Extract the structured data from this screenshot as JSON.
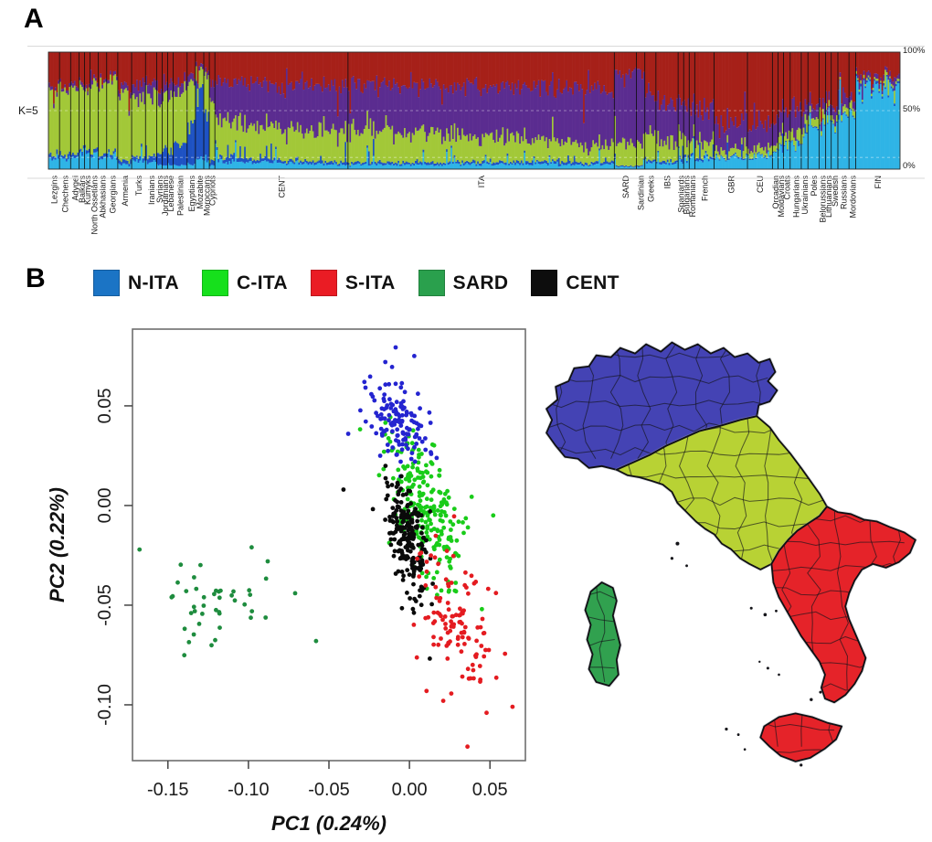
{
  "figure": {
    "panel_a_label": "A",
    "panel_b_label": "B",
    "background": "#ffffff"
  },
  "map": {
    "region_names": [
      "N-ITA",
      "C-ITA",
      "S-ITA",
      "SARD"
    ],
    "colors": {
      "north": "#4443b4",
      "central": "#b8d234",
      "south": "#e52329",
      "sardinia": "#31a14f",
      "border": "#101014"
    },
    "small_islands": [
      [
        152,
        230,
        2
      ],
      [
        146,
        246,
        1.6
      ],
      [
        162,
        254,
        1.4
      ],
      [
        232,
        300,
        1.5
      ],
      [
        247,
        307,
        1.8
      ],
      [
        259,
        303,
        1.4
      ],
      [
        205,
        431,
        1.6
      ],
      [
        218,
        437,
        1.4
      ],
      [
        297,
        399,
        1.7
      ],
      [
        307,
        391,
        1.5
      ],
      [
        286,
        470,
        1.6
      ],
      [
        225,
        453,
        1.3
      ],
      [
        250,
        365,
        1.5
      ],
      [
        262,
        372,
        1.3
      ],
      [
        241,
        358,
        1.2
      ]
    ]
  },
  "chart_data": [
    {
      "type": "bar",
      "name": "admixture-structure-plot",
      "stacked": true,
      "title": "K=5",
      "y_axis_labels": [
        "100%",
        "50%",
        "0%"
      ],
      "component_order": [
        "red",
        "purple",
        "green",
        "cyan",
        "blue"
      ],
      "component_colors": {
        "red": "#a62019",
        "purple": "#5b2c90",
        "green": "#a2c838",
        "cyan": "#2fb4e6",
        "blue": "#1e52c3"
      },
      "populations": [
        {
          "name": "Lezgins",
          "width": 2,
          "props": [
            0.33,
            0.03,
            0.52,
            0.09,
            0.03
          ]
        },
        {
          "name": "Chechens",
          "width": 2,
          "props": [
            0.3,
            0.03,
            0.55,
            0.09,
            0.03
          ]
        },
        {
          "name": "Adygei",
          "width": 1.5,
          "props": [
            0.28,
            0.04,
            0.54,
            0.11,
            0.03
          ]
        },
        {
          "name": "Balkars",
          "width": 1,
          "props": [
            0.26,
            0.03,
            0.55,
            0.13,
            0.03
          ]
        },
        {
          "name": "Kumyks",
          "width": 1,
          "props": [
            0.26,
            0.03,
            0.55,
            0.13,
            0.03
          ]
        },
        {
          "name": "North Ossetians",
          "width": 1.5,
          "props": [
            0.23,
            0.03,
            0.58,
            0.13,
            0.03
          ]
        },
        {
          "name": "Abkhasians",
          "width": 1.5,
          "props": [
            0.24,
            0.03,
            0.6,
            0.1,
            0.03
          ]
        },
        {
          "name": "Georgians",
          "width": 2,
          "props": [
            0.22,
            0.03,
            0.64,
            0.08,
            0.03
          ]
        },
        {
          "name": "Armenia",
          "width": 2.5,
          "props": [
            0.3,
            0.05,
            0.58,
            0.04,
            0.03
          ]
        },
        {
          "name": "Turks",
          "width": 2.5,
          "props": [
            0.28,
            0.12,
            0.49,
            0.07,
            0.04
          ]
        },
        {
          "name": "Iranians",
          "width": 2,
          "props": [
            0.26,
            0.08,
            0.54,
            0.06,
            0.06
          ]
        },
        {
          "name": "Syrians",
          "width": 1,
          "props": [
            0.3,
            0.1,
            0.46,
            0.04,
            0.1
          ]
        },
        {
          "name": "Jordanians",
          "width": 1,
          "props": [
            0.28,
            0.08,
            0.45,
            0.03,
            0.16
          ]
        },
        {
          "name": "Lebanese",
          "width": 1,
          "props": [
            0.3,
            0.12,
            0.46,
            0.04,
            0.08
          ]
        },
        {
          "name": "Palestinian",
          "width": 2.5,
          "props": [
            0.26,
            0.08,
            0.46,
            0.03,
            0.17
          ]
        },
        {
          "name": "Egyptians",
          "width": 1.5,
          "props": [
            0.2,
            0.06,
            0.36,
            0.04,
            0.34
          ]
        },
        {
          "name": "Mozabite",
          "width": 1.5,
          "props": [
            0.1,
            0.04,
            0.16,
            0.1,
            0.6
          ]
        },
        {
          "name": "Moroccans",
          "width": 1,
          "props": [
            0.14,
            0.05,
            0.3,
            0.06,
            0.45
          ]
        },
        {
          "name": "Cypriots",
          "width": 1,
          "props": [
            0.3,
            0.15,
            0.48,
            0.03,
            0.04
          ]
        },
        {
          "name": "CENT",
          "width": 24,
          "props": [
            0.26,
            0.34,
            0.3,
            0.07,
            0.03
          ],
          "props_end": [
            0.3,
            0.4,
            0.24,
            0.04,
            0.02
          ]
        },
        {
          "name": "ITA",
          "width": 48,
          "props": [
            0.28,
            0.38,
            0.28,
            0.04,
            0.02
          ],
          "props_end": [
            0.32,
            0.48,
            0.14,
            0.04,
            0.02
          ]
        },
        {
          "name": "SARD",
          "width": 4,
          "props": [
            0.17,
            0.62,
            0.18,
            0.02,
            0.01
          ]
        },
        {
          "name": "Sardinian",
          "width": 1.5,
          "props": [
            0.17,
            0.62,
            0.18,
            0.02,
            0.01
          ]
        },
        {
          "name": "Greeks",
          "width": 2,
          "props": [
            0.35,
            0.34,
            0.23,
            0.06,
            0.02
          ]
        },
        {
          "name": "IBS",
          "width": 4,
          "props": [
            0.43,
            0.34,
            0.16,
            0.05,
            0.02
          ]
        },
        {
          "name": "Spaniards",
          "width": 1,
          "props": [
            0.45,
            0.32,
            0.15,
            0.06,
            0.02
          ]
        },
        {
          "name": "Bulgarians",
          "width": 1,
          "props": [
            0.45,
            0.3,
            0.15,
            0.08,
            0.02
          ]
        },
        {
          "name": "Romanians",
          "width": 1,
          "props": [
            0.47,
            0.28,
            0.13,
            0.1,
            0.02
          ]
        },
        {
          "name": "French",
          "width": 3.5,
          "props": [
            0.5,
            0.28,
            0.12,
            0.08,
            0.02
          ]
        },
        {
          "name": "GBR",
          "width": 6,
          "props": [
            0.62,
            0.22,
            0.06,
            0.09,
            0.01
          ]
        },
        {
          "name": "CEU",
          "width": 4.5,
          "props": [
            0.62,
            0.2,
            0.06,
            0.11,
            0.01
          ]
        },
        {
          "name": "Orcadian",
          "width": 1,
          "props": [
            0.6,
            0.2,
            0.05,
            0.14,
            0.01
          ]
        },
        {
          "name": "Moldavians",
          "width": 1,
          "props": [
            0.5,
            0.2,
            0.1,
            0.19,
            0.01
          ]
        },
        {
          "name": "Croats",
          "width": 1.2,
          "props": [
            0.5,
            0.18,
            0.1,
            0.21,
            0.01
          ]
        },
        {
          "name": "Hungarians",
          "width": 2,
          "props": [
            0.5,
            0.18,
            0.1,
            0.21,
            0.01
          ]
        },
        {
          "name": "Ukrainians",
          "width": 1.2,
          "props": [
            0.48,
            0.15,
            0.1,
            0.26,
            0.01
          ]
        },
        {
          "name": "Poles",
          "width": 2,
          "props": [
            0.45,
            0.12,
            0.08,
            0.34,
            0.01
          ]
        },
        {
          "name": "Belorussians",
          "width": 1.2,
          "props": [
            0.42,
            0.1,
            0.07,
            0.4,
            0.01
          ]
        },
        {
          "name": "Lithuanians",
          "width": 1,
          "props": [
            0.38,
            0.08,
            0.05,
            0.48,
            0.01
          ]
        },
        {
          "name": "Swedish",
          "width": 1.2,
          "props": [
            0.45,
            0.1,
            0.05,
            0.39,
            0.01
          ]
        },
        {
          "name": "Russians",
          "width": 2,
          "props": [
            0.4,
            0.08,
            0.05,
            0.46,
            0.01
          ]
        },
        {
          "name": "Mordovians",
          "width": 1.2,
          "props": [
            0.35,
            0.08,
            0.06,
            0.5,
            0.01
          ]
        },
        {
          "name": "FIN",
          "width": 8,
          "props": [
            0.2,
            0.04,
            0.02,
            0.72,
            0.02
          ]
        }
      ]
    },
    {
      "type": "scatter",
      "name": "pca-plot",
      "xlabel": "PC1 (0.24%)",
      "ylabel": "PC2 (0.22%)",
      "xlim": [
        -0.172,
        0.072
      ],
      "ylim": [
        -0.128,
        0.0885
      ],
      "xticks": [
        "-0.15",
        "-0.10",
        "-0.05",
        "0.00",
        "0.05"
      ],
      "xtick_values": [
        -0.15,
        -0.1,
        -0.05,
        0.0,
        0.05
      ],
      "yticks": [
        "0.05",
        "0.00",
        "-0.05",
        "-0.10"
      ],
      "ytick_values": [
        0.05,
        0.0,
        -0.05,
        -0.1
      ],
      "grid": false,
      "point_radius": 2.4,
      "legend": [
        {
          "label": "N-ITA",
          "color": "#1b74c5"
        },
        {
          "label": "C-ITA",
          "color": "#16e01c"
        },
        {
          "label": "S-ITA",
          "color": "#ea1c24"
        },
        {
          "label": "SARD",
          "color": "#2aa04d"
        },
        {
          "label": "CENT",
          "color": "#0d0d0d"
        }
      ],
      "series": [
        {
          "name": "C-ITA",
          "color": "#19cc19",
          "n": 230,
          "cx": 0.01,
          "cy": 0.0,
          "sx": 0.012,
          "sy": 0.02,
          "corr": -0.55,
          "outliers": [
            [
              0.045,
              -0.052
            ],
            [
              0.052,
              -0.005
            ],
            [
              -0.012,
              0.032
            ]
          ]
        },
        {
          "name": "N-ITA",
          "color": "#2424d0",
          "n": 130,
          "cx": -0.007,
          "cy": 0.043,
          "sx": 0.01,
          "sy": 0.013,
          "corr": -0.35,
          "outliers": [
            [
              -0.038,
              0.036
            ],
            [
              -0.028,
              0.062
            ],
            [
              0.003,
              0.075
            ],
            [
              -0.015,
              0.072
            ]
          ]
        },
        {
          "name": "CENT",
          "color": "#0a0a0a",
          "n": 210,
          "cx": -0.001,
          "cy": -0.016,
          "sx": 0.007,
          "sy": 0.016,
          "corr": -0.5,
          "outliers": [
            [
              -0.041,
              0.008
            ]
          ]
        },
        {
          "name": "S-ITA",
          "color": "#e41b20",
          "n": 115,
          "cx": 0.027,
          "cy": -0.056,
          "sx": 0.011,
          "sy": 0.017,
          "corr": -0.35,
          "outliers": [
            [
              0.064,
              -0.101
            ],
            [
              0.036,
              -0.121
            ],
            [
              0.021,
              -0.098
            ]
          ]
        },
        {
          "name": "SARD",
          "color": "#1e8c3e",
          "n": 42,
          "cx": -0.124,
          "cy": -0.051,
          "sx": 0.018,
          "sy": 0.011,
          "corr": 0.1,
          "outliers": [
            [
              -0.071,
              -0.044
            ],
            [
              -0.058,
              -0.068
            ],
            [
              -0.088,
              -0.028
            ],
            [
              -0.098,
              -0.021
            ]
          ]
        }
      ]
    }
  ]
}
